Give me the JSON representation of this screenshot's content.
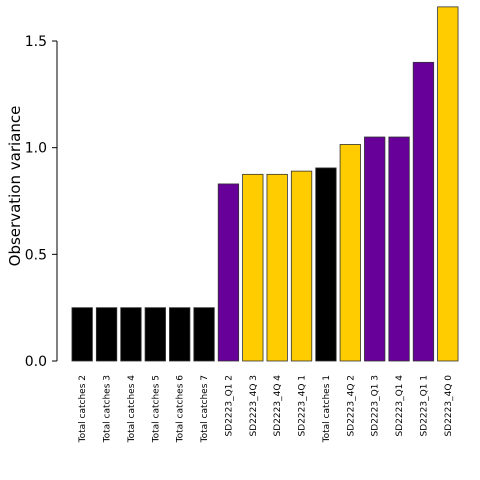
{
  "chart_data": {
    "type": "bar",
    "title": "",
    "xlabel": "",
    "ylabel": "Observation variance",
    "ylim": [
      0,
      1.6
    ],
    "yticks": [
      0.0,
      0.5,
      1.0,
      1.5
    ],
    "ytick_labels": [
      "0.0",
      "0.5",
      "1.0",
      "1.5"
    ],
    "grid": false,
    "legend": "none",
    "categories": [
      "Total catches 2",
      "Total catches 3",
      "Total catches 4",
      "Total catches 5",
      "Total catches 6",
      "Total catches 7",
      "SD2223_Q1 2",
      "SD2223_4Q 3",
      "SD2223_4Q 4",
      "SD2223_4Q 1",
      "Total catches 1",
      "SD2223_4Q 2",
      "SD2223_Q1 3",
      "SD2223_Q1 4",
      "SD2223_Q1 1",
      "SD2223_4Q 0"
    ],
    "values": [
      0.25,
      0.25,
      0.25,
      0.25,
      0.25,
      0.25,
      0.83,
      0.875,
      0.875,
      0.89,
      0.905,
      1.015,
      1.05,
      1.05,
      1.4,
      1.66
    ],
    "bar_colors": [
      "#000000",
      "#000000",
      "#000000",
      "#000000",
      "#000000",
      "#000000",
      "#660099",
      "#ffcc00",
      "#ffcc00",
      "#ffcc00",
      "#000000",
      "#ffcc00",
      "#660099",
      "#660099",
      "#660099",
      "#ffcc00"
    ]
  },
  "colors": {
    "total_catches": "#000000",
    "sd2223_q1": "#660099",
    "sd2223_4q": "#ffcc00",
    "axis": "#000000",
    "bar_edge": "#333333"
  }
}
